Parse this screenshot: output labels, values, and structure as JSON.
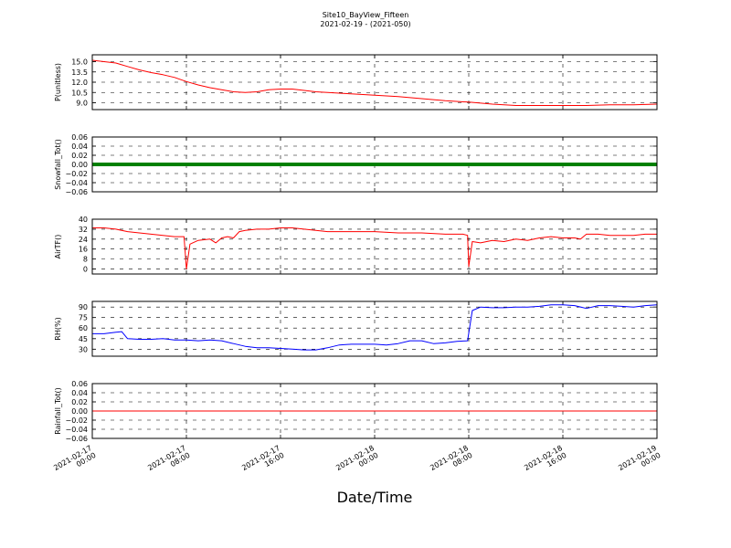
{
  "figure": {
    "title_line1": "Site10_BayView_Fifteen",
    "title_line2": "2021-02-19 - (2021-050)",
    "xlabel": "Date/Time"
  },
  "chart_data": [
    {
      "type": "line",
      "ylabel": "P(unitless)",
      "ylim": [
        8.0,
        16.0
      ],
      "yticks": [
        9.0,
        10.5,
        12.0,
        13.5,
        15.0
      ],
      "ytick_labels": [
        "9.0",
        "10.5",
        "12.0",
        "13.5",
        "15.0"
      ],
      "grid": true,
      "x_hours": [
        0,
        1,
        2,
        3,
        4,
        5,
        6,
        7,
        8,
        9,
        10,
        11,
        12,
        13,
        14,
        15,
        16,
        17,
        18,
        19,
        20,
        21,
        22,
        23,
        24,
        26,
        28,
        30,
        32,
        34,
        36,
        38,
        40,
        42,
        44,
        46,
        48
      ],
      "series": [
        {
          "color": "#ff0000",
          "values": [
            15.2,
            15.0,
            14.8,
            14.3,
            13.8,
            13.4,
            13.1,
            12.7,
            12.1,
            11.6,
            11.2,
            10.9,
            10.6,
            10.5,
            10.6,
            10.9,
            11.0,
            11.0,
            10.8,
            10.6,
            10.5,
            10.4,
            10.3,
            10.2,
            10.1,
            9.9,
            9.6,
            9.3,
            9.1,
            8.8,
            8.6,
            8.6,
            8.6,
            8.6,
            8.7,
            8.7,
            8.8
          ]
        }
      ]
    },
    {
      "type": "line",
      "ylabel": "Snowfall_Tot()",
      "ylim": [
        -0.06,
        0.06
      ],
      "yticks": [
        -0.06,
        -0.04,
        -0.02,
        0.0,
        0.02,
        0.04,
        0.06
      ],
      "ytick_labels": [
        "−0.06",
        "−0.04",
        "−0.02",
        "0.00",
        "0.02",
        "0.04",
        "0.06"
      ],
      "grid": true,
      "x_hours": [
        0,
        48
      ],
      "series": [
        {
          "color": "#008000",
          "values": [
            0.0,
            0.0
          ]
        }
      ]
    },
    {
      "type": "line",
      "ylabel": "AirTF()",
      "ylim": [
        -4,
        40
      ],
      "yticks": [
        0,
        8,
        16,
        24,
        32,
        40
      ],
      "ytick_labels": [
        "0",
        "8",
        "16",
        "24",
        "32",
        "40"
      ],
      "grid": true,
      "x_hours": [
        0,
        1,
        2,
        3,
        4,
        5,
        6,
        7,
        7.8,
        8.0,
        8.3,
        9,
        10,
        10.5,
        11,
        11.5,
        12,
        12.5,
        13,
        14,
        15,
        16,
        17,
        18,
        19,
        20,
        22,
        24,
        26,
        28,
        30,
        31.5,
        31.9,
        32.0,
        32.3,
        33,
        34,
        35,
        36,
        37,
        38,
        39,
        40,
        41,
        41.5,
        42,
        43,
        44,
        45,
        46,
        47,
        48
      ],
      "series": [
        {
          "color": "#ff0000",
          "values": [
            33,
            33,
            32,
            30,
            29,
            28,
            27,
            26,
            26,
            0,
            20,
            23,
            24,
            21,
            25,
            26,
            25,
            30,
            31,
            32,
            32,
            33,
            33,
            32,
            31,
            30,
            30,
            30,
            29,
            29,
            28,
            28,
            27,
            2,
            22,
            21,
            23,
            22,
            24,
            23,
            25,
            26,
            25,
            25,
            24,
            28,
            28,
            27,
            27,
            27,
            28,
            28
          ]
        }
      ]
    },
    {
      "type": "line",
      "ylabel": "RH(%)",
      "ylim": [
        20,
        98
      ],
      "yticks": [
        30,
        45,
        60,
        75,
        90
      ],
      "ytick_labels": [
        "30",
        "45",
        "60",
        "75",
        "90"
      ],
      "grid": true,
      "x_hours": [
        0,
        1,
        2,
        2.5,
        3,
        4,
        5,
        6,
        7,
        8,
        9,
        10,
        11,
        12,
        13,
        14,
        15,
        16,
        17,
        18,
        19,
        20,
        21,
        22,
        23,
        24,
        25,
        26,
        27,
        28,
        29,
        30,
        31,
        31.9,
        32.3,
        33,
        34,
        35,
        36,
        37,
        38,
        39,
        40,
        41,
        42,
        43,
        44,
        45,
        46,
        47,
        48
      ],
      "series": [
        {
          "color": "#0000ff",
          "values": [
            52,
            52,
            54,
            55,
            45,
            44,
            44,
            45,
            43,
            43,
            42,
            43,
            42,
            38,
            34,
            32,
            32,
            31,
            30,
            29,
            29,
            32,
            36,
            37,
            37,
            37,
            36,
            38,
            42,
            42,
            38,
            39,
            41,
            42,
            85,
            90,
            89,
            89,
            90,
            90,
            91,
            93,
            93,
            92,
            88,
            92,
            92,
            91,
            90,
            92,
            93
          ]
        }
      ]
    },
    {
      "type": "line",
      "ylabel": "Rainfall_Tot()",
      "ylim": [
        -0.06,
        0.06
      ],
      "yticks": [
        -0.06,
        -0.04,
        -0.02,
        0.0,
        0.02,
        0.04,
        0.06
      ],
      "ytick_labels": [
        "−0.06",
        "−0.04",
        "−0.02",
        "0.00",
        "0.02",
        "0.04",
        "0.06"
      ],
      "grid": true,
      "x_hours": [
        0,
        48
      ],
      "series": [
        {
          "color": "#ff0000",
          "values": [
            0.0,
            0.0
          ]
        }
      ]
    }
  ],
  "x_axis": {
    "xlim_hours": [
      0,
      48
    ],
    "tick_hours": [
      0,
      8,
      16,
      24,
      32,
      40,
      48
    ],
    "tick_labels": [
      [
        "2021-02-17",
        "00:00"
      ],
      [
        "2021-02-17",
        "08:00"
      ],
      [
        "2021-02-17",
        "16:00"
      ],
      [
        "2021-02-18",
        "00:00"
      ],
      [
        "2021-02-18",
        "08:00"
      ],
      [
        "2021-02-18",
        "16:00"
      ],
      [
        "2021-02-19",
        "00:00"
      ]
    ]
  }
}
